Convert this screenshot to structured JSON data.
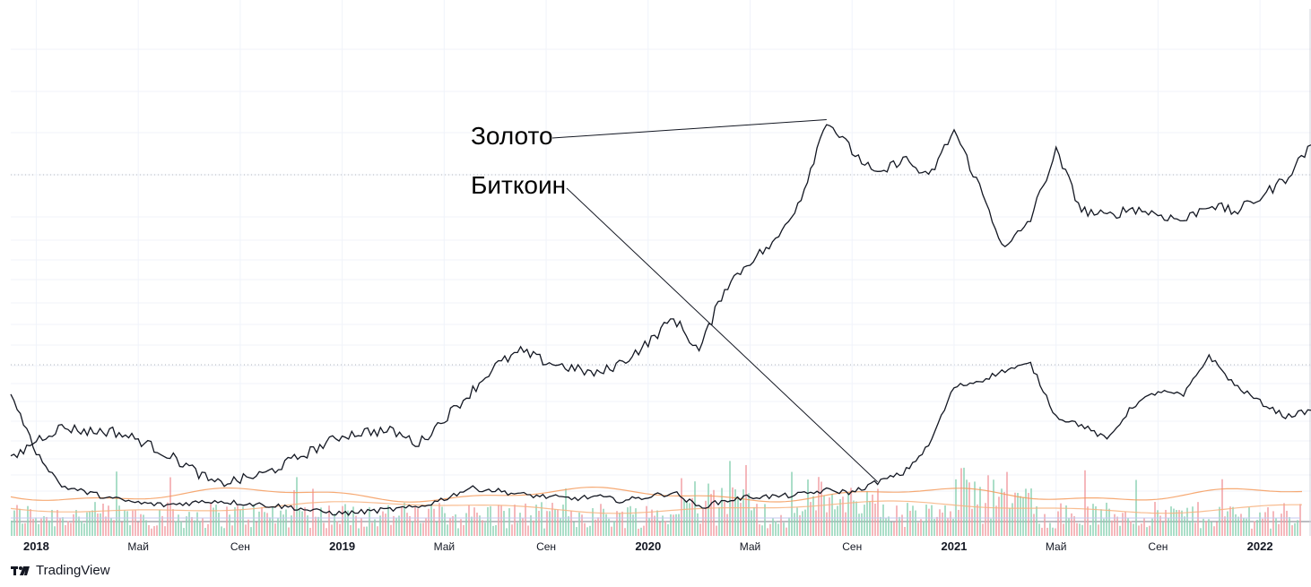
{
  "chart_data": {
    "type": "line",
    "annotations": [
      {
        "label": "Золото",
        "series": "Золото",
        "points_to": "2020-08"
      },
      {
        "label": "Биткоин",
        "series": "Биткоин",
        "points_to": "2020-10"
      }
    ],
    "x_tick_labels": [
      "2018",
      "Май",
      "Сен",
      "2019",
      "Май",
      "Сен",
      "2020",
      "Май",
      "Сен",
      "2021",
      "Май",
      "Сен",
      "2022"
    ],
    "x_range": [
      "2017-12",
      "2022-03"
    ],
    "grid": true,
    "volume_bars": true,
    "series": [
      {
        "name": "Золото",
        "color": "#131722",
        "x": [
          "2017-12",
          "2018-01",
          "2018-02",
          "2018-03",
          "2018-04",
          "2018-05",
          "2018-06",
          "2018-07",
          "2018-08",
          "2018-09",
          "2018-10",
          "2018-11",
          "2018-12",
          "2019-01",
          "2019-02",
          "2019-03",
          "2019-04",
          "2019-05",
          "2019-06",
          "2019-07",
          "2019-08",
          "2019-09",
          "2019-10",
          "2019-11",
          "2019-12",
          "2020-01",
          "2020-02",
          "2020-03",
          "2020-04",
          "2020-05",
          "2020-06",
          "2020-07",
          "2020-08",
          "2020-09",
          "2020-10",
          "2020-11",
          "2020-12",
          "2021-01",
          "2021-02",
          "2021-03",
          "2021-04",
          "2021-05",
          "2021-06",
          "2021-07",
          "2021-08",
          "2021-09",
          "2021-10",
          "2021-11",
          "2021-12",
          "2022-01",
          "2022-02",
          "2022-03"
        ],
        "values": [
          28,
          38,
          44,
          42,
          42,
          38,
          32,
          25,
          17,
          19,
          22,
          28,
          34,
          40,
          42,
          42,
          36,
          48,
          60,
          73,
          80,
          75,
          72,
          69,
          75,
          84,
          96,
          80,
          110,
          123,
          132,
          153,
          190,
          175,
          163,
          172,
          162,
          185,
          158,
          128,
          143,
          175,
          147,
          144,
          148,
          145,
          142,
          150,
          146,
          153,
          162,
          178
        ]
      },
      {
        "name": "Биткоин",
        "color": "#131722",
        "x": [
          "2017-12",
          "2018-01",
          "2018-02",
          "2018-03",
          "2018-04",
          "2018-05",
          "2018-06",
          "2018-07",
          "2018-08",
          "2018-09",
          "2018-10",
          "2018-11",
          "2018-12",
          "2019-01",
          "2019-02",
          "2019-03",
          "2019-04",
          "2019-05",
          "2019-06",
          "2019-07",
          "2019-08",
          "2019-09",
          "2019-10",
          "2019-11",
          "2019-12",
          "2020-01",
          "2020-02",
          "2020-03",
          "2020-04",
          "2020-05",
          "2020-06",
          "2020-07",
          "2020-08",
          "2020-09",
          "2020-10",
          "2020-11",
          "2020-12",
          "2021-01",
          "2021-02",
          "2021-03",
          "2021-04",
          "2021-05",
          "2021-06",
          "2021-07",
          "2021-08",
          "2021-09",
          "2021-10",
          "2021-11",
          "2021-12",
          "2022-01",
          "2022-02",
          "2022-03"
        ],
        "values": [
          60,
          32,
          16,
          13,
          10,
          8,
          7,
          8,
          9,
          8,
          7,
          6,
          4,
          3,
          4,
          5,
          6,
          10,
          15,
          14,
          12,
          11,
          10,
          11,
          9,
          11,
          13,
          6,
          9,
          11,
          11,
          12,
          14,
          13,
          18,
          22,
          35,
          63,
          66,
          71,
          74,
          49,
          45,
          38,
          54,
          61,
          59,
          78,
          64,
          56,
          49,
          52
        ]
      }
    ]
  },
  "branding": {
    "logo_text": "TradingView"
  }
}
